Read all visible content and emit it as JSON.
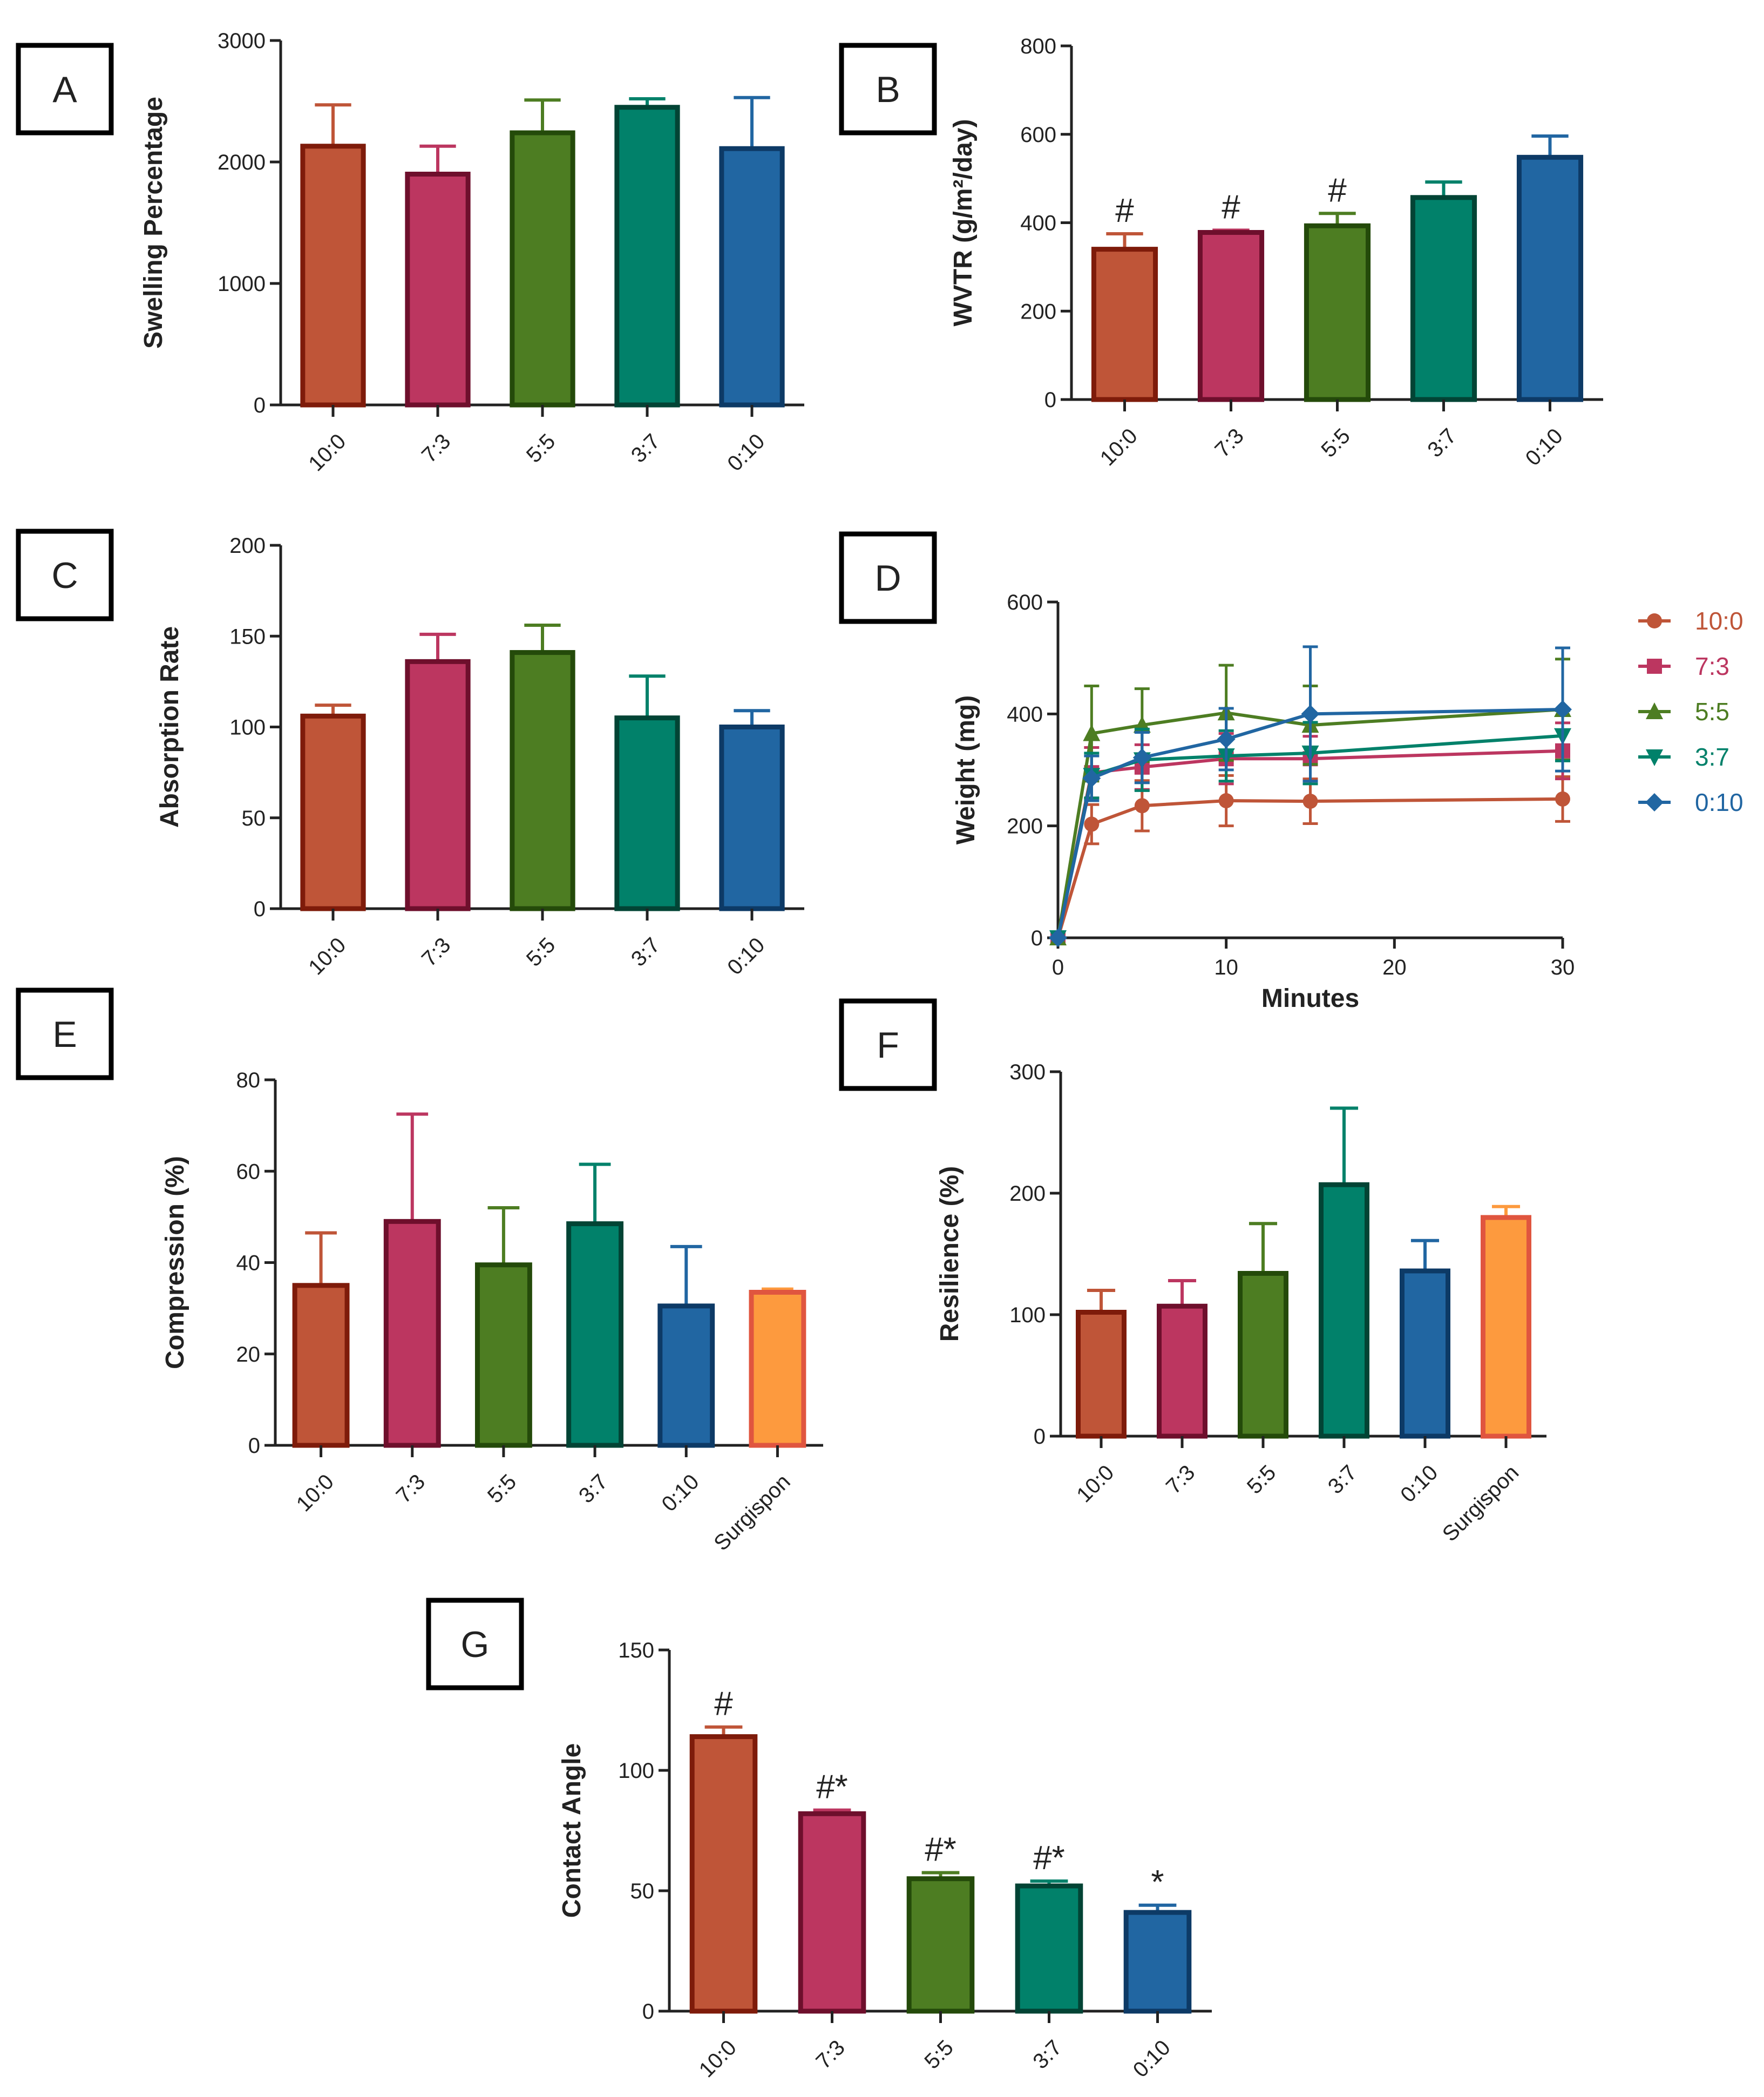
{
  "palette": {
    "10:0": {
      "fill": "#bf5538",
      "stroke": "#7e1b0a"
    },
    "7:3": {
      "fill": "#bc3660",
      "stroke": "#6e0f2c"
    },
    "5:5": {
      "fill": "#4d7d22",
      "stroke": "#244a0a"
    },
    "3:7": {
      "fill": "#01816a",
      "stroke": "#024435"
    },
    "0:10": {
      "fill": "#2166a2",
      "stroke": "#0d3a66"
    },
    "Surgispon": {
      "fill": "#fd9a3e",
      "stroke": "#e0553f"
    }
  },
  "chart_data": [
    {
      "id": "A",
      "panel_label": "A",
      "type": "bar",
      "categories": [
        "10:0",
        "7:3",
        "5:5",
        "3:7",
        "0:10"
      ],
      "values": [
        2130,
        1900,
        2240,
        2450,
        2110
      ],
      "errors": [
        340,
        230,
        270,
        70,
        420
      ],
      "title": "",
      "xlabel": "",
      "ylabel": "Swelling  Percentage",
      "ylim": [
        0,
        3000
      ],
      "yticks": [
        "0",
        "1000",
        "2000",
        "3000"
      ],
      "markers": [
        "",
        "",
        "",
        "",
        ""
      ]
    },
    {
      "id": "B",
      "panel_label": "B",
      "type": "bar",
      "categories": [
        "10:0",
        "7:3",
        "5:5",
        "3:7",
        "0:10"
      ],
      "values": [
        340,
        378,
        393,
        457,
        548
      ],
      "errors": [
        35,
        5,
        28,
        35,
        48
      ],
      "title": "",
      "xlabel": "",
      "ylabel": "WVTR (g/m²/day)",
      "ylim": [
        0,
        800
      ],
      "yticks": [
        "0",
        "200",
        "400",
        "600",
        "800"
      ],
      "markers": [
        "#",
        "#",
        "#",
        "",
        ""
      ]
    },
    {
      "id": "C",
      "panel_label": "C",
      "type": "bar",
      "categories": [
        "10:0",
        "7:3",
        "5:5",
        "3:7",
        "0:10"
      ],
      "values": [
        106,
        136,
        141,
        105,
        100
      ],
      "errors": [
        6,
        15,
        15,
        23,
        9
      ],
      "title": "",
      "xlabel": "",
      "ylabel": "Absorption Rate",
      "ylim": [
        0,
        200
      ],
      "yticks": [
        "0",
        "50",
        "100",
        "150",
        "200"
      ],
      "markers": [
        "",
        "",
        "",
        "",
        ""
      ]
    },
    {
      "id": "D",
      "panel_label": "D",
      "type": "line",
      "x": [
        0,
        2,
        5,
        10,
        15,
        30
      ],
      "series": [
        {
          "name": "10:0",
          "marker": "circle",
          "values": [
            0,
            203,
            236,
            245,
            244,
            248
          ],
          "errors": [
            0,
            35,
            45,
            45,
            40,
            40
          ]
        },
        {
          "name": "7:3",
          "marker": "square",
          "values": [
            0,
            295,
            305,
            320,
            320,
            334
          ],
          "errors": [
            0,
            45,
            40,
            45,
            40,
            50
          ]
        },
        {
          "name": "5:5",
          "marker": "triangle-up",
          "values": [
            0,
            365,
            380,
            402,
            380,
            408
          ],
          "errors": [
            0,
            85,
            65,
            85,
            70,
            90
          ]
        },
        {
          "name": "3:7",
          "marker": "triangle-down",
          "values": [
            0,
            290,
            318,
            325,
            330,
            361
          ],
          "errors": [
            0,
            40,
            55,
            45,
            55,
            45
          ]
        },
        {
          "name": "0:10",
          "marker": "diamond",
          "values": [
            0,
            285,
            322,
            355,
            400,
            408
          ],
          "errors": [
            0,
            40,
            45,
            55,
            120,
            110
          ]
        }
      ],
      "title": "",
      "xlabel": "Minutes",
      "ylabel": "Weight (mg)",
      "xlim": [
        0,
        30
      ],
      "ylim": [
        0,
        600
      ],
      "xticks": [
        "0",
        "10",
        "20",
        "30"
      ],
      "yticks": [
        "0",
        "200",
        "400",
        "600"
      ],
      "legend": "right"
    },
    {
      "id": "E",
      "panel_label": "E",
      "type": "bar",
      "categories": [
        "10:0",
        "7:3",
        "5:5",
        "3:7",
        "0:10",
        "Surgispon"
      ],
      "values": [
        35,
        49,
        39.5,
        48.5,
        30.5,
        33.5
      ],
      "errors": [
        11.5,
        23.5,
        12.5,
        13,
        13,
        0.7
      ],
      "title": "",
      "xlabel": "",
      "ylabel": "Compression  (%)",
      "ylim": [
        0,
        80
      ],
      "yticks": [
        "0",
        "20",
        "40",
        "60",
        "80"
      ],
      "markers": [
        "",
        "",
        "",
        "",
        "",
        ""
      ]
    },
    {
      "id": "F",
      "panel_label": "F",
      "type": "bar",
      "categories": [
        "10:0",
        "7:3",
        "5:5",
        "3:7",
        "0:10",
        "Surgispon"
      ],
      "values": [
        102,
        107,
        134,
        207,
        136,
        180
      ],
      "errors": [
        18,
        21,
        41,
        63,
        25,
        9
      ],
      "title": "",
      "xlabel": "",
      "ylabel": "Resilience  (%)",
      "ylim": [
        0,
        300
      ],
      "yticks": [
        "0",
        "100",
        "200",
        "300"
      ],
      "markers": [
        "",
        "",
        "",
        "",
        "",
        ""
      ]
    },
    {
      "id": "G",
      "panel_label": "G",
      "type": "bar",
      "categories": [
        "10:0",
        "7:3",
        "5:5",
        "3:7",
        "0:10"
      ],
      "values": [
        114,
        82,
        55,
        52,
        41
      ],
      "errors": [
        4,
        1.5,
        2.5,
        2,
        3
      ],
      "title": "",
      "xlabel": "",
      "ylabel": "Contact Angle",
      "ylim": [
        0,
        150
      ],
      "yticks": [
        "0",
        "50",
        "100",
        "150"
      ],
      "markers": [
        "#",
        "#*",
        "#*",
        "#*",
        "*"
      ]
    }
  ]
}
